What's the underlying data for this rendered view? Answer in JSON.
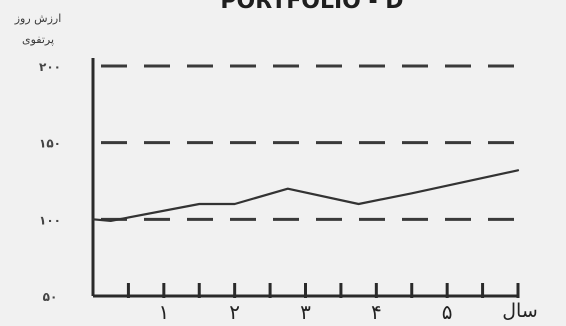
{
  "chart_data": {
    "type": "line",
    "title": "PORTFOLIO - D",
    "ylabel_lines": [
      "ارزش روز",
      "پرتفوی"
    ],
    "xlabel": "سال",
    "ylim": [
      50,
      200
    ],
    "xlim": [
      0,
      6
    ],
    "y_ticks": [
      {
        "value": 50,
        "label": "۵۰"
      },
      {
        "value": 100,
        "label": "۱۰۰"
      },
      {
        "value": 150,
        "label": "۱۵۰"
      },
      {
        "value": 200,
        "label": "۲۰۰"
      }
    ],
    "x_ticks": [
      {
        "value": 1,
        "label": "۱"
      },
      {
        "value": 2,
        "label": "۲"
      },
      {
        "value": 3,
        "label": "۳"
      },
      {
        "value": 4,
        "label": "۴"
      },
      {
        "value": 5,
        "label": "۵"
      }
    ],
    "minor_x_ticks": [
      0.5,
      1,
      1.5,
      2,
      2.5,
      3,
      3.5,
      4,
      4.5,
      5,
      5.5,
      6
    ],
    "dashed_gridlines_y": [
      100,
      150,
      200
    ],
    "grid": "horizontal-dashed",
    "series": [
      {
        "x": [
          0,
          0.25,
          1.5,
          2,
          2.75,
          3.75,
          4.5,
          6
        ],
        "y": [
          100,
          99,
          110,
          110,
          120,
          110,
          117,
          132
        ]
      }
    ],
    "colors": {
      "background": "#f1f1f1",
      "line": "#333333",
      "grid": "#3a3a3a"
    }
  }
}
